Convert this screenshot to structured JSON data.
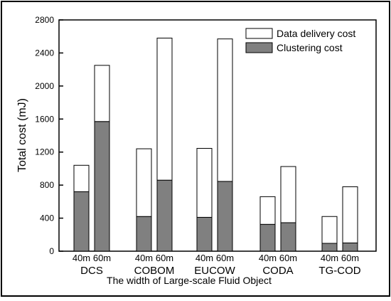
{
  "chart_data": {
    "type": "bar",
    "stacked": true,
    "title": "",
    "xlabel": "The width of Large-scale Fluid Object",
    "ylabel": "Total cost (mJ)",
    "ylim": [
      0,
      2800
    ],
    "yticks": [
      0,
      400,
      800,
      1200,
      1600,
      2000,
      2400,
      2800
    ],
    "grid": false,
    "legend_position": "top-right",
    "groups": [
      "DCS",
      "COBOM",
      "EUCOW",
      "CODA",
      "TG-COD"
    ],
    "subcategories": [
      "40m",
      "60m"
    ],
    "series": [
      {
        "name": "Clustering cost",
        "color": "#808080",
        "values": [
          [
            720,
            1570
          ],
          [
            420,
            860
          ],
          [
            410,
            845
          ],
          [
            325,
            345
          ],
          [
            95,
            100
          ]
        ]
      },
      {
        "name": "Data delivery cost",
        "color": "#ffffff",
        "values": [
          [
            320,
            680
          ],
          [
            820,
            1720
          ],
          [
            835,
            1725
          ],
          [
            335,
            680
          ],
          [
            325,
            680
          ]
        ]
      }
    ],
    "totals": [
      [
        1040,
        2250
      ],
      [
        1240,
        2580
      ],
      [
        1245,
        2570
      ],
      [
        660,
        1025
      ],
      [
        420,
        780
      ]
    ]
  }
}
